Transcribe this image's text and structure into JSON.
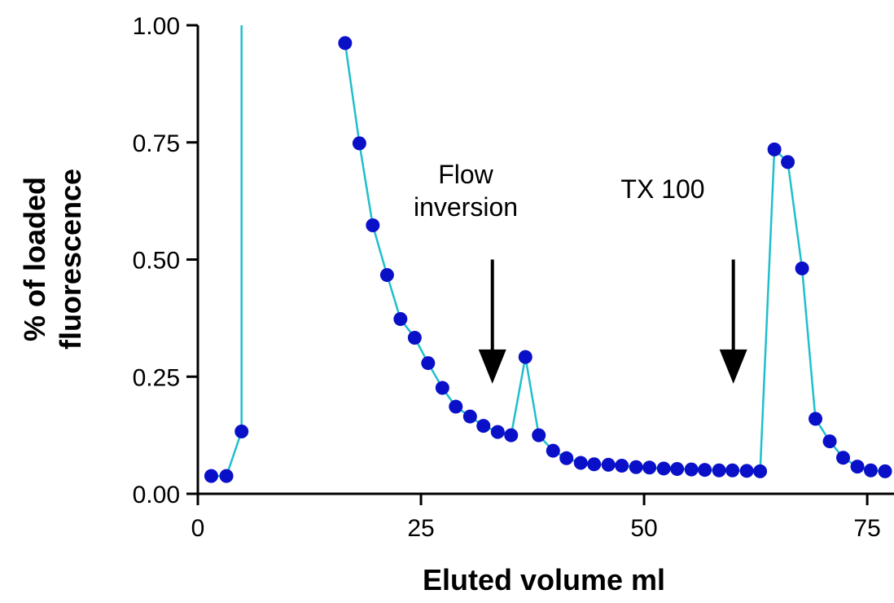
{
  "chart_data": {
    "type": "scatter",
    "title": "",
    "xlabel": "Eluted volume ml",
    "ylabel_lines": [
      "% of loaded",
      "fluorescence"
    ],
    "xlim": [
      0,
      78
    ],
    "ylim": [
      0,
      1.0
    ],
    "x_ticks": [
      0,
      25,
      50,
      75
    ],
    "x_tick_labels": [
      "0",
      "25",
      "50",
      "75"
    ],
    "y_ticks": [
      0,
      0.25,
      0.5,
      0.75,
      1.0
    ],
    "y_tick_labels": [
      "0.00",
      "0.25",
      "0.50",
      "0.75",
      "1.00"
    ],
    "grid": false,
    "colors": {
      "line": "#1fbfcc",
      "marker": "#0a10c8",
      "arrow": "#000000"
    },
    "series": [
      {
        "line_break_after_x": 4.9,
        "line_break_top_y": 1.0,
        "x": [
          1.5,
          3.2,
          4.9,
          16.5,
          18.1,
          19.6,
          21.2,
          22.7,
          24.3,
          25.8,
          27.4,
          28.9,
          30.5,
          32.0,
          33.6,
          35.1,
          36.7,
          38.2,
          39.8,
          41.3,
          42.9,
          44.4,
          46.0,
          47.5,
          49.1,
          50.6,
          52.2,
          53.7,
          55.3,
          56.8,
          58.4,
          59.9,
          61.5,
          63.0,
          64.6,
          66.1,
          67.7,
          69.2,
          70.8,
          72.3,
          73.9,
          75.4,
          77.0
        ],
        "y": [
          0.038,
          0.038,
          0.133,
          0.962,
          0.748,
          0.573,
          0.467,
          0.373,
          0.333,
          0.279,
          0.226,
          0.186,
          0.165,
          0.145,
          0.132,
          0.125,
          0.292,
          0.125,
          0.092,
          0.076,
          0.066,
          0.063,
          0.062,
          0.06,
          0.057,
          0.056,
          0.054,
          0.053,
          0.052,
          0.051,
          0.05,
          0.05,
          0.049,
          0.048,
          0.735,
          0.708,
          0.481,
          0.16,
          0.112,
          0.077,
          0.058,
          0.05,
          0.048
        ]
      }
    ],
    "annotations": [
      {
        "lines": [
          "Flow",
          "inversion"
        ],
        "arrow_x": 33.0,
        "arrow_y_from": 0.5,
        "arrow_y_to": 0.235
      },
      {
        "lines": [
          "TX 100"
        ],
        "arrow_x": 60.0,
        "arrow_y_from": 0.5,
        "arrow_y_to": 0.235
      }
    ]
  }
}
